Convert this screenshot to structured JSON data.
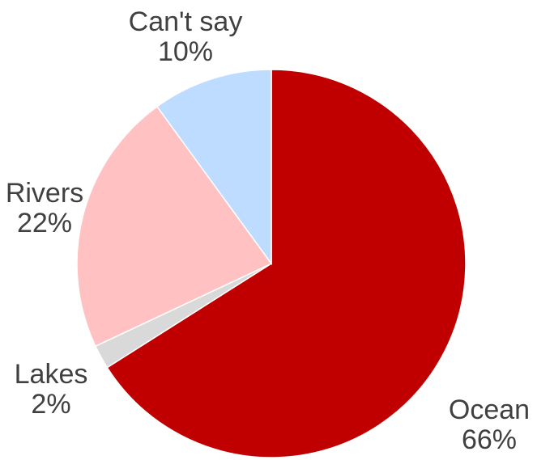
{
  "chart_data": {
    "type": "pie",
    "slices": [
      {
        "label": "Ocean",
        "value": 66,
        "value_label": "66%",
        "color": "#C00000"
      },
      {
        "label": "Lakes",
        "value": 2,
        "value_label": "2%",
        "color": "#D9D9D9"
      },
      {
        "label": "Rivers",
        "value": 22,
        "value_label": "22%",
        "color": "#FFC1C1"
      },
      {
        "label": "Can't say",
        "value": 10,
        "value_label": "10%",
        "color": "#BDDCFF"
      }
    ],
    "start": "12 o'clock",
    "direction": "clockwise",
    "legend": "none",
    "data_labels": "outside, category name above percentage"
  }
}
